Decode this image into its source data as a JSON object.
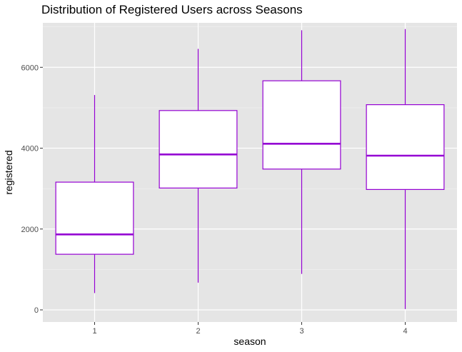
{
  "chart_data": {
    "type": "boxplot",
    "title": "Distribution of Registered Users across Seasons",
    "xlabel": "season",
    "ylabel": "registered",
    "categories": [
      "1",
      "2",
      "3",
      "4"
    ],
    "yticks": [
      0,
      2000,
      4000,
      6000
    ],
    "ylim": [
      -300,
      7100
    ],
    "boxes": [
      {
        "category": "1",
        "min": 416,
        "q1": 1376,
        "median": 1867,
        "q3": 3160,
        "max": 5315
      },
      {
        "category": "2",
        "min": 674,
        "q1": 3014,
        "median": 3845,
        "q3": 4931,
        "max": 6456
      },
      {
        "category": "3",
        "min": 889,
        "q1": 3483,
        "median": 4110,
        "q3": 5667,
        "max": 6917
      },
      {
        "category": "4",
        "min": 20,
        "q1": 2978,
        "median": 3815,
        "q3": 5076,
        "max": 6946
      }
    ],
    "box_color": "#9400d3",
    "panel_background": "#e5e5e5",
    "grid": true,
    "legend": "none"
  }
}
